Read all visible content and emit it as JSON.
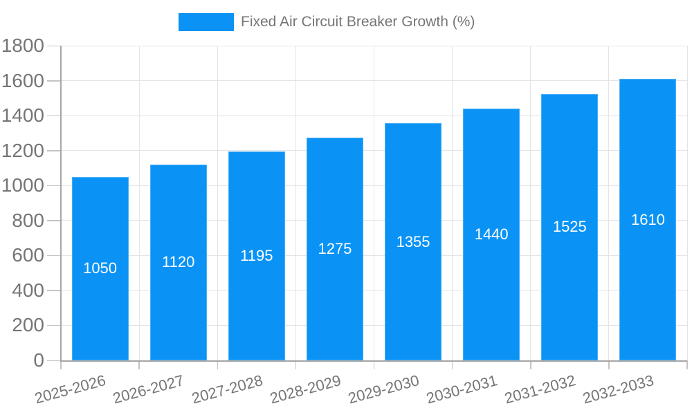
{
  "chart_data": {
    "type": "bar",
    "title": "",
    "legend": {
      "label": "Fixed Air Circuit Breaker Growth (%)",
      "position": "top"
    },
    "categories": [
      "2025-2026",
      "2026-2027",
      "2027-2028",
      "2028-2029",
      "2029-2030",
      "2030-2031",
      "2031-2032",
      "2032-2033"
    ],
    "series": [
      {
        "name": "Fixed Air Circuit Breaker Growth (%)",
        "values": [
          1050,
          1120,
          1195,
          1275,
          1355,
          1440,
          1525,
          1610
        ]
      }
    ],
    "value_labels": [
      "1050",
      "1120",
      "1195",
      "1275",
      "1355",
      "1440",
      "1525",
      "1610"
    ],
    "xlabel": "",
    "ylabel": "",
    "ylim": [
      0,
      1800
    ],
    "yticks": [
      0,
      200,
      400,
      600,
      800,
      1000,
      1200,
      1400,
      1600,
      1800
    ],
    "grid": true,
    "colors": {
      "bar": "#0a93f5",
      "bar_value_text": "#ffffff",
      "axis_text": "#757575",
      "grid_line": "#e4e4e4",
      "axis_line": "#a6a6a6",
      "tick_line": "#c4c4c4",
      "background": "#ffffff"
    }
  }
}
